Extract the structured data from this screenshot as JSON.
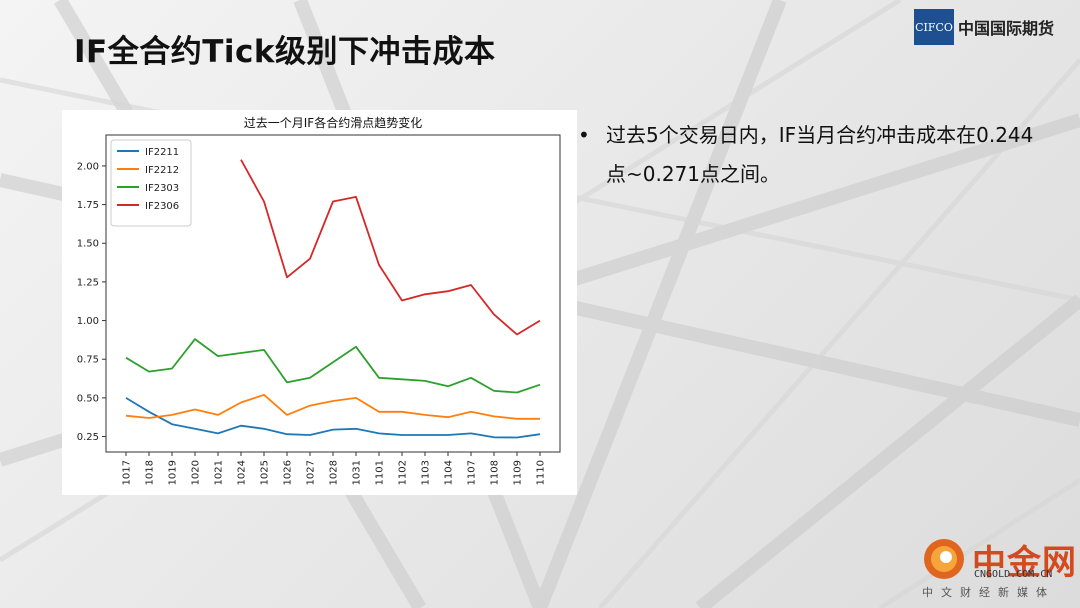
{
  "slide": {
    "title": "IF全合约Tick级别下冲击成本",
    "logo_box": "CIFCO",
    "logo_text": "中国国际期货",
    "bullet_text": "过去5个交易日内，IF当月合约冲击成本在0.244点~0.271点之间。",
    "watermark": {
      "name": "中金网",
      "url": "CNGOLD.COM.CN",
      "sub": "中文财经新媒体"
    }
  },
  "chart_data": {
    "type": "line",
    "title": "过去一个月IF各合约滑点趋势变化",
    "xlabel": "",
    "ylabel": "",
    "categories": [
      "1017",
      "1018",
      "1019",
      "1020",
      "1021",
      "1024",
      "1025",
      "1026",
      "1027",
      "1028",
      "1031",
      "1101",
      "1102",
      "1103",
      "1104",
      "1107",
      "1108",
      "1109",
      "1110"
    ],
    "ylim": [
      0.15,
      2.2
    ],
    "yticks": [
      "0.25",
      "0.50",
      "0.75",
      "1.00",
      "1.25",
      "1.50",
      "1.75",
      "2.00"
    ],
    "legend_position": "top-left",
    "grid": false,
    "series": [
      {
        "name": "IF2211",
        "color": "#1f77b4",
        "values": [
          0.5,
          0.41,
          0.33,
          0.3,
          0.27,
          0.32,
          0.3,
          0.265,
          0.26,
          0.295,
          0.3,
          0.27,
          0.26,
          0.26,
          0.26,
          0.27,
          0.245,
          0.244,
          0.265
        ]
      },
      {
        "name": "IF2212",
        "color": "#ff7f0e",
        "values": [
          0.385,
          0.37,
          0.39,
          0.425,
          0.39,
          0.47,
          0.52,
          0.39,
          0.45,
          0.48,
          0.5,
          0.41,
          0.41,
          0.39,
          0.375,
          0.41,
          0.38,
          0.365,
          0.365
        ]
      },
      {
        "name": "IF2303",
        "color": "#2ca02c",
        "values": [
          0.76,
          0.67,
          0.69,
          0.88,
          0.77,
          0.79,
          0.81,
          0.6,
          0.63,
          0.73,
          0.83,
          0.63,
          0.62,
          0.61,
          0.575,
          0.63,
          0.545,
          0.535,
          0.585
        ]
      },
      {
        "name": "IF2306",
        "color": "#d62728",
        "values": [
          null,
          null,
          null,
          null,
          null,
          2.04,
          1.77,
          1.28,
          1.4,
          1.77,
          1.8,
          1.36,
          1.13,
          1.17,
          1.19,
          1.23,
          1.04,
          0.91,
          1.0
        ]
      }
    ]
  }
}
